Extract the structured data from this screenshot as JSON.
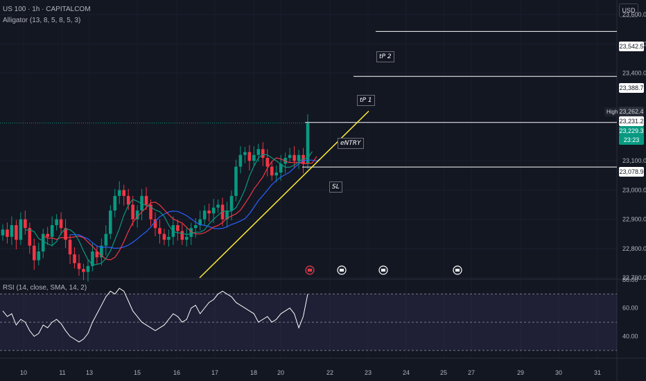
{
  "header": {
    "symbol": "US 100 · 1h · CAPITALCOM",
    "indicator": "Alligator (13, 8, 5, 8, 5, 3)"
  },
  "currency_button": "USD",
  "price_axis": {
    "labels": [
      "23,600.0",
      "23,500.0",
      "23,400.0",
      "23,100.0",
      "23,000.0",
      "22,900.0",
      "22,800.0",
      "22,700.0"
    ]
  },
  "price_tags": {
    "tp2": "23,542.5",
    "tp1": "23,388.7",
    "high_label": "High",
    "high": "23,262.4",
    "entry": "23,231.2",
    "current": "23,229.3",
    "countdown": "23:23",
    "sl": "23,078.9"
  },
  "annotations": {
    "tp2": "tP 2",
    "tp1": "tP 1",
    "entry": "eNTRY",
    "sl": "SL"
  },
  "rsi": {
    "label": "RSI (14, close, SMA, 14, 2)",
    "axis_labels": [
      "80.00",
      "60.00",
      "40.00"
    ]
  },
  "time_axis": {
    "labels": [
      "10",
      "11",
      "13",
      "15",
      "16",
      "17",
      "18",
      "20",
      "22",
      "23",
      "24",
      "25",
      "27",
      "29",
      "30",
      "31"
    ]
  },
  "colors": {
    "background": "#131722",
    "up": "#089981",
    "down": "#f23645",
    "jaw": "#2962ff",
    "teeth": "#f23645",
    "lips": "#089981",
    "trendline": "#ffeb3b",
    "rsi_line": "#ffffff",
    "rsi_band": "#7e57c2"
  },
  "chart_data": {
    "type": "candlestick",
    "symbol": "US 100",
    "interval": "1h",
    "ylim": [
      22700,
      23650
    ],
    "horizontal_levels": {
      "tp2": 23542.5,
      "tp1": 23388.7,
      "entry": 23231.2,
      "sl": 23078.9
    },
    "trendline": {
      "from_price": 22700,
      "to_price": 23270
    },
    "closes": [
      22865,
      22840,
      22880,
      22830,
      22900,
      22870,
      22810,
      22760,
      22790,
      22850,
      22840,
      22880,
      22900,
      22870,
      22830,
      22780,
      22750,
      22730,
      22720,
      22740,
      22790,
      22770,
      22810,
      22850,
      22930,
      22980,
      23000,
      22980,
      22950,
      22900,
      22930,
      22980,
      22950,
      22900,
      22870,
      22850,
      22830,
      22840,
      22880,
      22860,
      22830,
      22840,
      22870,
      22880,
      22900,
      22930,
      22920,
      22940,
      22950,
      22900,
      22930,
      22980,
      23080,
      23120,
      23130,
      23100,
      23120,
      23140,
      23110,
      23080,
      23050,
      23060,
      23090,
      23110,
      23120,
      23100,
      23120,
      23090,
      23229
    ],
    "rsi": {
      "ylim": [
        25,
        80
      ],
      "levels": [
        70,
        50,
        30
      ],
      "values": [
        58,
        54,
        56,
        48,
        52,
        50,
        44,
        40,
        42,
        48,
        46,
        50,
        52,
        49,
        44,
        40,
        38,
        36,
        38,
        42,
        50,
        56,
        62,
        68,
        72,
        70,
        74,
        72,
        65,
        58,
        54,
        50,
        48,
        46,
        44,
        46,
        48,
        52,
        56,
        54,
        50,
        52,
        60,
        62,
        56,
        60,
        64,
        66,
        70,
        72,
        70,
        68,
        64,
        62,
        60,
        58,
        56,
        50,
        52,
        54,
        50,
        52,
        56,
        58,
        60,
        56,
        46,
        54,
        70
      ]
    }
  }
}
